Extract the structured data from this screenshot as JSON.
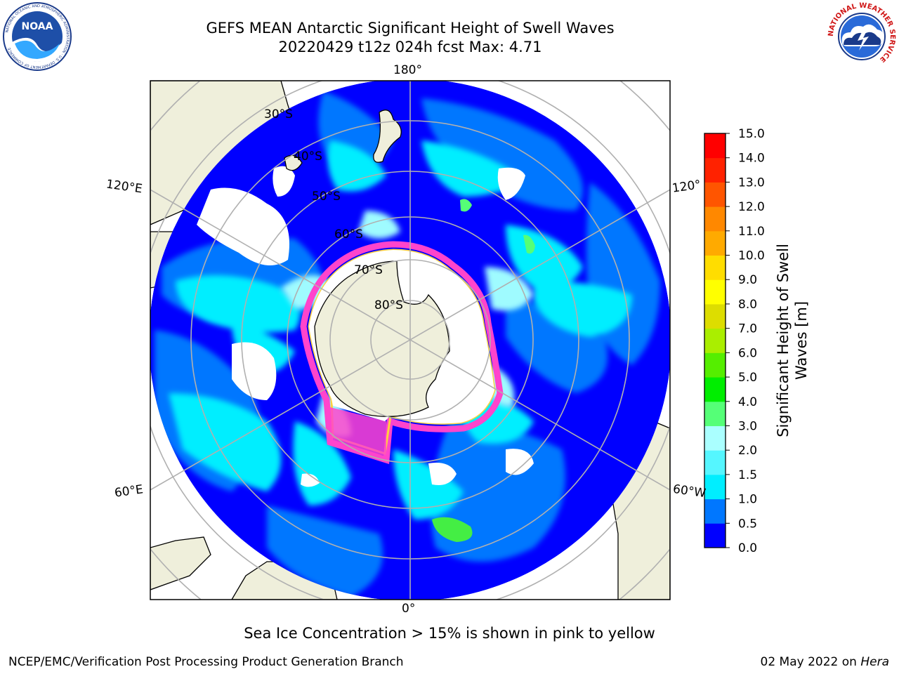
{
  "title": {
    "line1": "GEFS MEAN Antarctic Significant Height of Swell Waves",
    "line2": "20220429 t12z 024h fcst   Max: 4.71"
  },
  "logos": {
    "left": {
      "icon": "noaa-logo",
      "text": "NOAA",
      "ring_text": "NATIONAL OCEANIC AND ATMOSPHERIC ADMINISTRATION · U.S. DEPARTMENT OF COMMERCE"
    },
    "right": {
      "icon": "nws-logo",
      "ring_text": "NATIONAL WEATHER SERVICE"
    }
  },
  "map": {
    "projection": "south-polar-stereographic",
    "lon_labels": {
      "top": "180°",
      "bottom": "0°",
      "upper_left": "120°E",
      "lower_left": "60°E",
      "upper_right": "120°",
      "lower_right": "60°W"
    },
    "lat_labels": [
      "30°S",
      "40°S",
      "50°S",
      "60°S",
      "70°S",
      "80°S"
    ],
    "colors": {
      "land": "#efefdb",
      "gridline": "#b0b0b0",
      "coast": "#000000",
      "sea_ice_pink": "#ff44cc",
      "sea_ice_yellow": "#ffd040"
    }
  },
  "colorbar": {
    "title_line1": "Significant Height of Swell",
    "title_line2": "Waves [m]",
    "ticks": [
      "0.0",
      "0.5",
      "1.0",
      "1.5",
      "2.0",
      "3.0",
      "4.0",
      "5.0",
      "6.0",
      "7.0",
      "8.0",
      "9.0",
      "10.0",
      "11.0",
      "12.0",
      "13.0",
      "14.0",
      "15.0"
    ],
    "colors": [
      "#0000ff",
      "#0077ff",
      "#00eeff",
      "#55f6ff",
      "#aaffff",
      "#55ff77",
      "#00ee00",
      "#55ee00",
      "#aaee00",
      "#dddd00",
      "#ffff00",
      "#ffdd00",
      "#ffaa00",
      "#ff8800",
      "#ff5500",
      "#ff2200",
      "#ff0000"
    ]
  },
  "footer": {
    "note": "Sea Ice Concentration > 15% is shown in pink to yellow",
    "left": "NCEP/EMC/Verification Post Processing Product Generation Branch",
    "right_prefix": "02 May 2022 on ",
    "right_host": "Hera"
  }
}
